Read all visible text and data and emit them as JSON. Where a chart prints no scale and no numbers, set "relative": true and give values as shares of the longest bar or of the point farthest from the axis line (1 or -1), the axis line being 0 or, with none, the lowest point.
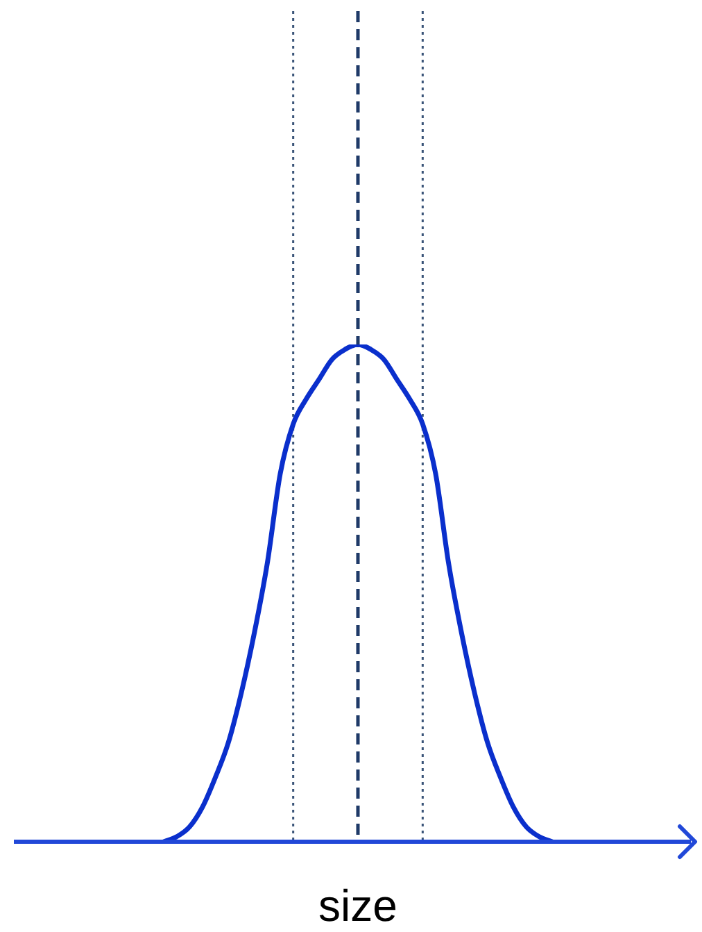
{
  "chart_data": {
    "type": "line",
    "relative": true,
    "xlabel": "size",
    "tick_labels": false,
    "legend": false,
    "marker": "none",
    "line_style": "solid",
    "categories": [
      null,
      null,
      null,
      null,
      null,
      null,
      null,
      null,
      null,
      null,
      null,
      null,
      null,
      null,
      null,
      null,
      null,
      null,
      null,
      null,
      null,
      null,
      null,
      null,
      null,
      null,
      null,
      null,
      null,
      null,
      null
    ],
    "series": [
      {
        "color": "#0a2fcc",
        "values": [
          0,
          0.01,
          0.03,
          0.07,
          0.13,
          0.2,
          0.3,
          0.42,
          0.56,
          0.74,
          0.84,
          0.89,
          0.93,
          0.97,
          0.99,
          1,
          0.99,
          0.97,
          0.93,
          0.89,
          0.84,
          0.74,
          0.56,
          0.42,
          0.3,
          0.2,
          0.13,
          0.07,
          0.03,
          0.01,
          0
        ]
      }
    ]
  }
}
